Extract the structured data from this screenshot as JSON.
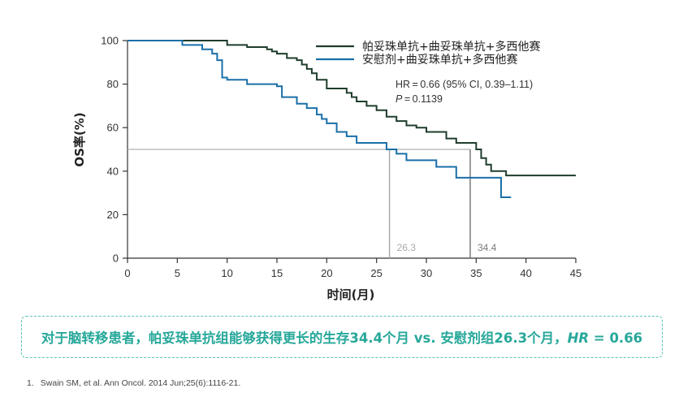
{
  "colors": {
    "dark_green": "#1f3d2c",
    "blue": "#1a6fa8",
    "guide": "#a9a9a9",
    "teal": "#27a89a"
  },
  "chart_data": {
    "type": "line",
    "xlabel": "时间(月)",
    "ylabel": "OS率(%)",
    "xlim": [
      0,
      45
    ],
    "ylim": [
      0,
      100
    ],
    "xticks": [
      0,
      5,
      10,
      15,
      20,
      25,
      30,
      35,
      40,
      45
    ],
    "yticks": [
      0,
      20,
      40,
      60,
      80,
      100
    ],
    "grid": false,
    "legend_position": "top-right",
    "series": [
      {
        "name": "帕妥珠单抗+曲妥珠单抗+多西他赛",
        "color": "#1f3d2c",
        "x": [
          0,
          10,
          12,
          14,
          14.5,
          15,
          16,
          17,
          17.5,
          18,
          18.5,
          19,
          20,
          22,
          22.5,
          23,
          24,
          25,
          26,
          27,
          28,
          29,
          30,
          32,
          33,
          35,
          35.5,
          36,
          36.5,
          38,
          45
        ],
        "y": [
          100,
          98,
          97,
          96,
          95,
          94,
          92,
          91,
          89,
          87,
          85,
          82,
          78,
          76,
          74,
          72,
          70,
          68,
          65,
          63,
          61,
          60,
          58,
          55,
          53,
          50,
          46,
          43,
          40,
          38,
          38
        ]
      },
      {
        "name": "安慰剂+曲妥珠单抗+多西他赛",
        "color": "#1a6fa8",
        "x": [
          0,
          5.5,
          7.5,
          8.5,
          9,
          9.5,
          10,
          12,
          15,
          15.5,
          17,
          18,
          19,
          19.5,
          20,
          21,
          22,
          23,
          24,
          25,
          26,
          27,
          28,
          31,
          33,
          37.5,
          38.5
        ],
        "y": [
          100,
          98,
          96,
          94,
          91,
          83,
          82,
          80,
          79,
          74,
          71,
          69,
          66,
          64,
          62,
          58,
          56,
          53,
          53,
          53,
          50,
          48,
          45,
          42,
          37,
          28,
          28
        ]
      }
    ],
    "median_lines": [
      {
        "x": 26.3,
        "label": "26.3",
        "color": "#a9a9a9"
      },
      {
        "x": 34.4,
        "label": "34.4",
        "color": "#7a7a7a"
      }
    ],
    "median_y": 50,
    "annotation": {
      "hr_text": "HR = 0.66 (95% CI, 0.39–1.11)",
      "p_label": "P",
      "p_value": " = 0.1139"
    }
  },
  "summary": {
    "text": "对于脑转移患者，帕妥珠单抗组能够获得更长的生存34.4个月 vs. 安慰剂组26.3个月，",
    "hr_label": "HR",
    "hr_value": " = 0.66"
  },
  "footnote": {
    "number": "1.",
    "text": "Swain SM, et al. Ann Oncol. 2014 Jun;25(6):1116-21."
  }
}
